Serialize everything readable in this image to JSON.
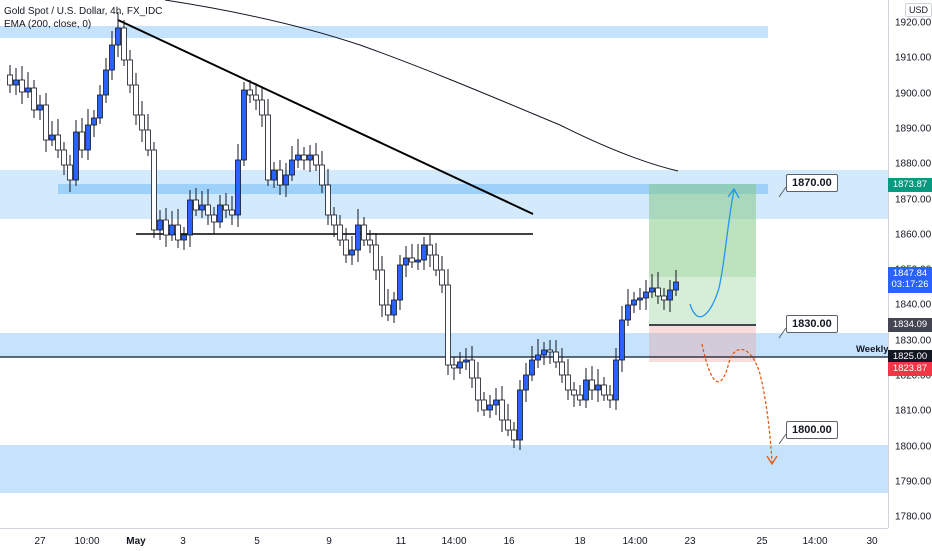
{
  "legend": {
    "symbol": "Gold Spot / U.S. Dollar, 4h, FX_IDC",
    "indicator": "EMA (200, close, 0)"
  },
  "price_axis": {
    "currency": "USD",
    "ticks": [
      "1920.00",
      "1910.00",
      "1900.00",
      "1890.00",
      "1880.00",
      "1870.00",
      "1860.00",
      "1850.00",
      "1840.00",
      "1830.00",
      "1820.00",
      "1810.00",
      "1800.00",
      "1790.00",
      "1780.00"
    ]
  },
  "time_axis": {
    "ticks": [
      "27",
      "10:00",
      "May",
      "3",
      "5",
      "9",
      "11",
      "14:00",
      "16",
      "18",
      "14:00",
      "23",
      "25",
      "14:00",
      "30"
    ]
  },
  "price_tags": {
    "target": "1873.87",
    "last_price": "1847.84",
    "countdown": "03:17:26",
    "entry": "1834.09",
    "weekly": "1825.00",
    "stop": "1823.87"
  },
  "callouts": {
    "level_1870": "1870.00",
    "level_1830": "1830.00",
    "level_1800": "1800.00",
    "weekly_label": "Weekly"
  },
  "colors": {
    "zone": "#bbdefb",
    "up": "#2962ff",
    "down": "#ffffff",
    "target": "#089981",
    "price": "#2962ff",
    "entry": "#434651",
    "weekly": "#131722",
    "stop": "#f23645",
    "ema": "#131722",
    "bull_arrow": "#2196f3",
    "bear_arrow": "#e65100"
  }
}
